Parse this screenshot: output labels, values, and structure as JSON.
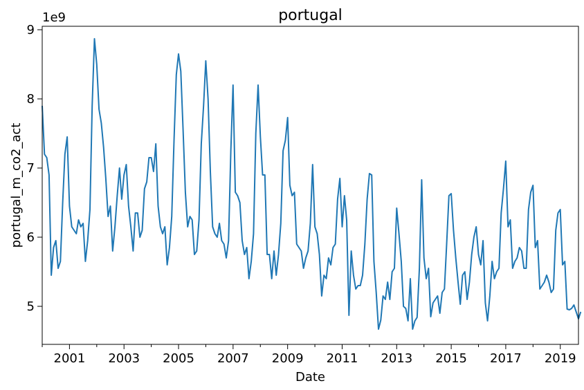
{
  "chart_data": {
    "type": "line",
    "title": "portugal",
    "xlabel": "Date",
    "ylabel": "portugal_m_co2_act",
    "y_offset_text": "1e9",
    "y_scale": 1000000000,
    "color": "#1f77b4",
    "grid": false,
    "legend": "none",
    "xlim": [
      "2000-01",
      "2019-09"
    ],
    "ylim": [
      4.45,
      9.05
    ],
    "x_ticks": [
      "2001",
      "2003",
      "2005",
      "2007",
      "2009",
      "2011",
      "2013",
      "2015",
      "2017",
      "2019"
    ],
    "y_ticks": [
      "5",
      "6",
      "7",
      "8",
      "9"
    ],
    "series": [
      {
        "points": [
          [
            "2000-01",
            7.9
          ],
          [
            "2000-02",
            7.2
          ],
          [
            "2000-03",
            7.15
          ],
          [
            "2000-04",
            6.9
          ],
          [
            "2000-05",
            5.45
          ],
          [
            "2000-06",
            5.85
          ],
          [
            "2000-07",
            5.95
          ],
          [
            "2000-08",
            5.55
          ],
          [
            "2000-09",
            5.65
          ],
          [
            "2000-10",
            6.5
          ],
          [
            "2000-11",
            7.2
          ],
          [
            "2000-12",
            7.45
          ],
          [
            "2001-01",
            6.45
          ],
          [
            "2001-02",
            6.15
          ],
          [
            "2001-03",
            6.1
          ],
          [
            "2001-04",
            6.05
          ],
          [
            "2001-05",
            6.25
          ],
          [
            "2001-06",
            6.15
          ],
          [
            "2001-07",
            6.2
          ],
          [
            "2001-08",
            5.65
          ],
          [
            "2001-09",
            5.95
          ],
          [
            "2001-10",
            6.4
          ],
          [
            "2001-11",
            7.9
          ],
          [
            "2001-12",
            8.87
          ],
          [
            "2002-01",
            8.5
          ],
          [
            "2002-02",
            7.85
          ],
          [
            "2002-03",
            7.65
          ],
          [
            "2002-04",
            7.3
          ],
          [
            "2002-05",
            6.85
          ],
          [
            "2002-06",
            6.3
          ],
          [
            "2002-07",
            6.45
          ],
          [
            "2002-08",
            5.8
          ],
          [
            "2002-09",
            6.15
          ],
          [
            "2002-10",
            6.6
          ],
          [
            "2002-11",
            7.0
          ],
          [
            "2002-12",
            6.55
          ],
          [
            "2003-01",
            6.9
          ],
          [
            "2003-02",
            7.05
          ],
          [
            "2003-03",
            6.45
          ],
          [
            "2003-04",
            6.15
          ],
          [
            "2003-05",
            5.8
          ],
          [
            "2003-06",
            6.35
          ],
          [
            "2003-07",
            6.35
          ],
          [
            "2003-08",
            6.0
          ],
          [
            "2003-09",
            6.1
          ],
          [
            "2003-10",
            6.7
          ],
          [
            "2003-11",
            6.8
          ],
          [
            "2003-12",
            7.15
          ],
          [
            "2004-01",
            7.15
          ],
          [
            "2004-02",
            6.95
          ],
          [
            "2004-03",
            7.35
          ],
          [
            "2004-04",
            6.45
          ],
          [
            "2004-05",
            6.15
          ],
          [
            "2004-06",
            6.05
          ],
          [
            "2004-07",
            6.15
          ],
          [
            "2004-08",
            5.6
          ],
          [
            "2004-09",
            5.85
          ],
          [
            "2004-10",
            6.3
          ],
          [
            "2004-11",
            7.4
          ],
          [
            "2004-12",
            8.35
          ],
          [
            "2005-01",
            8.65
          ],
          [
            "2005-02",
            8.4
          ],
          [
            "2005-03",
            7.55
          ],
          [
            "2005-04",
            6.65
          ],
          [
            "2005-05",
            6.15
          ],
          [
            "2005-06",
            6.3
          ],
          [
            "2005-07",
            6.25
          ],
          [
            "2005-08",
            5.75
          ],
          [
            "2005-09",
            5.8
          ],
          [
            "2005-10",
            6.25
          ],
          [
            "2005-11",
            7.35
          ],
          [
            "2005-12",
            7.9
          ],
          [
            "2006-01",
            8.55
          ],
          [
            "2006-02",
            8.0
          ],
          [
            "2006-03",
            6.95
          ],
          [
            "2006-04",
            6.15
          ],
          [
            "2006-05",
            6.05
          ],
          [
            "2006-06",
            6.0
          ],
          [
            "2006-07",
            6.2
          ],
          [
            "2006-08",
            5.95
          ],
          [
            "2006-09",
            5.9
          ],
          [
            "2006-10",
            5.7
          ],
          [
            "2006-11",
            5.95
          ],
          [
            "2006-12",
            7.25
          ],
          [
            "2007-01",
            8.2
          ],
          [
            "2007-02",
            6.65
          ],
          [
            "2007-03",
            6.6
          ],
          [
            "2007-04",
            6.5
          ],
          [
            "2007-05",
            5.95
          ],
          [
            "2007-06",
            5.75
          ],
          [
            "2007-07",
            5.85
          ],
          [
            "2007-08",
            5.4
          ],
          [
            "2007-09",
            5.65
          ],
          [
            "2007-10",
            6.05
          ],
          [
            "2007-11",
            7.5
          ],
          [
            "2007-12",
            8.2
          ],
          [
            "2008-01",
            7.45
          ],
          [
            "2008-02",
            6.9
          ],
          [
            "2008-03",
            6.9
          ],
          [
            "2008-04",
            5.75
          ],
          [
            "2008-05",
            5.75
          ],
          [
            "2008-06",
            5.4
          ],
          [
            "2008-07",
            5.8
          ],
          [
            "2008-08",
            5.45
          ],
          [
            "2008-09",
            5.75
          ],
          [
            "2008-10",
            6.2
          ],
          [
            "2008-11",
            7.25
          ],
          [
            "2008-12",
            7.4
          ],
          [
            "2009-01",
            7.73
          ],
          [
            "2009-02",
            6.75
          ],
          [
            "2009-03",
            6.6
          ],
          [
            "2009-04",
            6.65
          ],
          [
            "2009-05",
            5.9
          ],
          [
            "2009-06",
            5.85
          ],
          [
            "2009-07",
            5.8
          ],
          [
            "2009-08",
            5.55
          ],
          [
            "2009-09",
            5.7
          ],
          [
            "2009-10",
            5.8
          ],
          [
            "2009-11",
            6.2
          ],
          [
            "2009-12",
            7.05
          ],
          [
            "2010-01",
            6.15
          ],
          [
            "2010-02",
            6.05
          ],
          [
            "2010-03",
            5.75
          ],
          [
            "2010-04",
            5.15
          ],
          [
            "2010-05",
            5.45
          ],
          [
            "2010-06",
            5.4
          ],
          [
            "2010-07",
            5.7
          ],
          [
            "2010-08",
            5.6
          ],
          [
            "2010-09",
            5.85
          ],
          [
            "2010-10",
            5.9
          ],
          [
            "2010-11",
            6.55
          ],
          [
            "2010-12",
            6.85
          ],
          [
            "2011-01",
            6.15
          ],
          [
            "2011-02",
            6.6
          ],
          [
            "2011-03",
            6.25
          ],
          [
            "2011-04",
            4.87
          ],
          [
            "2011-05",
            5.8
          ],
          [
            "2011-06",
            5.45
          ],
          [
            "2011-07",
            5.25
          ],
          [
            "2011-08",
            5.3
          ],
          [
            "2011-09",
            5.3
          ],
          [
            "2011-10",
            5.45
          ],
          [
            "2011-11",
            5.9
          ],
          [
            "2011-12",
            6.55
          ],
          [
            "2012-01",
            6.92
          ],
          [
            "2012-02",
            6.9
          ],
          [
            "2012-03",
            5.65
          ],
          [
            "2012-04",
            5.2
          ],
          [
            "2012-05",
            4.67
          ],
          [
            "2012-06",
            4.8
          ],
          [
            "2012-07",
            5.15
          ],
          [
            "2012-08",
            5.1
          ],
          [
            "2012-09",
            5.35
          ],
          [
            "2012-10",
            5.1
          ],
          [
            "2012-11",
            5.5
          ],
          [
            "2012-12",
            5.55
          ],
          [
            "2013-01",
            6.42
          ],
          [
            "2013-02",
            6.05
          ],
          [
            "2013-03",
            5.65
          ],
          [
            "2013-04",
            5.0
          ],
          [
            "2013-05",
            4.97
          ],
          [
            "2013-06",
            4.79
          ],
          [
            "2013-07",
            5.4
          ],
          [
            "2013-08",
            4.67
          ],
          [
            "2013-09",
            4.79
          ],
          [
            "2013-10",
            4.84
          ],
          [
            "2013-11",
            5.55
          ],
          [
            "2013-12",
            6.83
          ],
          [
            "2014-01",
            5.7
          ],
          [
            "2014-02",
            5.4
          ],
          [
            "2014-03",
            5.55
          ],
          [
            "2014-04",
            4.85
          ],
          [
            "2014-05",
            5.05
          ],
          [
            "2014-06",
            5.1
          ],
          [
            "2014-07",
            5.15
          ],
          [
            "2014-08",
            4.9
          ],
          [
            "2014-09",
            5.2
          ],
          [
            "2014-10",
            5.25
          ],
          [
            "2014-11",
            5.9
          ],
          [
            "2014-12",
            6.6
          ],
          [
            "2015-01",
            6.63
          ],
          [
            "2015-02",
            6.1
          ],
          [
            "2015-03",
            5.7
          ],
          [
            "2015-04",
            5.35
          ],
          [
            "2015-05",
            5.03
          ],
          [
            "2015-06",
            5.45
          ],
          [
            "2015-07",
            5.5
          ],
          [
            "2015-08",
            5.1
          ],
          [
            "2015-09",
            5.35
          ],
          [
            "2015-10",
            5.75
          ],
          [
            "2015-11",
            6.0
          ],
          [
            "2015-12",
            6.15
          ],
          [
            "2016-01",
            5.75
          ],
          [
            "2016-02",
            5.6
          ],
          [
            "2016-03",
            5.95
          ],
          [
            "2016-04",
            5.05
          ],
          [
            "2016-05",
            4.79
          ],
          [
            "2016-06",
            5.15
          ],
          [
            "2016-07",
            5.65
          ],
          [
            "2016-08",
            5.4
          ],
          [
            "2016-09",
            5.5
          ],
          [
            "2016-10",
            5.55
          ],
          [
            "2016-11",
            6.35
          ],
          [
            "2016-12",
            6.7
          ],
          [
            "2017-01",
            7.1
          ],
          [
            "2017-02",
            6.15
          ],
          [
            "2017-03",
            6.25
          ],
          [
            "2017-04",
            5.55
          ],
          [
            "2017-05",
            5.65
          ],
          [
            "2017-06",
            5.7
          ],
          [
            "2017-07",
            5.85
          ],
          [
            "2017-08",
            5.8
          ],
          [
            "2017-09",
            5.55
          ],
          [
            "2017-10",
            5.55
          ],
          [
            "2017-11",
            6.4
          ],
          [
            "2017-12",
            6.65
          ],
          [
            "2018-01",
            6.75
          ],
          [
            "2018-02",
            5.85
          ],
          [
            "2018-03",
            5.95
          ],
          [
            "2018-04",
            5.25
          ],
          [
            "2018-05",
            5.3
          ],
          [
            "2018-06",
            5.35
          ],
          [
            "2018-07",
            5.45
          ],
          [
            "2018-08",
            5.35
          ],
          [
            "2018-09",
            5.2
          ],
          [
            "2018-10",
            5.25
          ],
          [
            "2018-11",
            6.1
          ],
          [
            "2018-12",
            6.35
          ],
          [
            "2019-01",
            6.4
          ],
          [
            "2019-02",
            5.6
          ],
          [
            "2019-03",
            5.65
          ],
          [
            "2019-04",
            4.96
          ],
          [
            "2019-05",
            4.95
          ],
          [
            "2019-06",
            4.97
          ],
          [
            "2019-07",
            5.02
          ],
          [
            "2019-08",
            4.92
          ],
          [
            "2019-09",
            4.82
          ],
          [
            "2019-10",
            4.92
          ]
        ]
      }
    ]
  }
}
